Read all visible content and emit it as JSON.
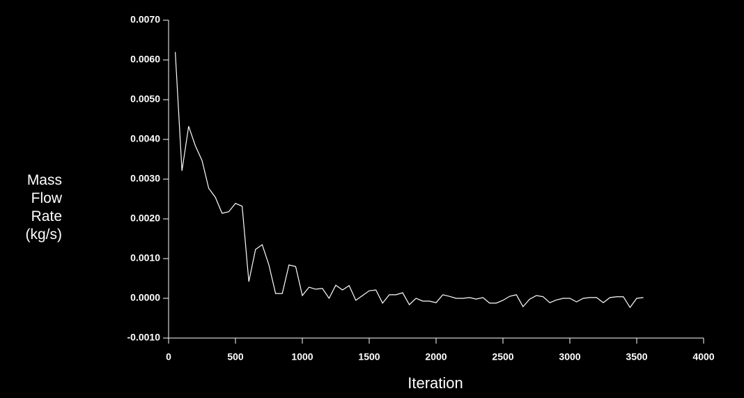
{
  "chart_data": {
    "type": "line",
    "xlabel": "Iteration",
    "ylabel": "Mass\nFlow\nRate\n(kg/s)",
    "x": [
      50,
      100,
      150,
      200,
      250,
      300,
      350,
      400,
      450,
      500,
      550,
      600,
      650,
      700,
      750,
      800,
      850,
      900,
      950,
      1000,
      1050,
      1100,
      1150,
      1200,
      1250,
      1300,
      1350,
      1400,
      1450,
      1500,
      1550,
      1600,
      1650,
      1700,
      1750,
      1800,
      1850,
      1900,
      1950,
      2000,
      2050,
      2100,
      2150,
      2200,
      2250,
      2300,
      2350,
      2400,
      2450,
      2500,
      2550,
      2600,
      2650,
      2700,
      2750,
      2800,
      2850,
      2900,
      2950,
      3000,
      3050,
      3100,
      3150,
      3200,
      3250,
      3300,
      3350,
      3400,
      3450,
      3500,
      3550
    ],
    "series": [
      {
        "color": "#ffffff",
        "values": [
          0.0062,
          0.00321,
          0.00433,
          0.00384,
          0.00347,
          0.00277,
          0.00254,
          0.00214,
          0.00218,
          0.00239,
          0.00232,
          0.00042,
          0.00123,
          0.00135,
          0.00084,
          0.00012,
          0.00012,
          0.00084,
          0.0008,
          7e-05,
          0.00028,
          0.00023,
          0.00025,
          0.0,
          0.00033,
          0.00021,
          0.00032,
          -5e-05,
          7e-05,
          0.00019,
          0.00021,
          -0.00012,
          9e-05,
          9e-05,
          0.00014,
          -0.00016,
          0.0,
          -7e-05,
          -7e-05,
          -0.00011,
          9e-05,
          5e-05,
          0.0,
          0.0,
          2e-05,
          -2e-05,
          2e-05,
          -0.00012,
          -0.00012,
          -5e-05,
          5e-05,
          9e-05,
          -0.00021,
          -2e-05,
          7e-05,
          4e-05,
          -0.00011,
          -4e-05,
          0.0,
          0.0,
          -9e-05,
          0.0,
          2e-05,
          2e-05,
          -0.00011,
          2e-05,
          4e-05,
          4e-05,
          -0.00023,
          0.0,
          2e-05
        ]
      }
    ],
    "xlim": [
      0,
      4000
    ],
    "xticks": [
      0,
      500,
      1000,
      1500,
      2000,
      2500,
      3000,
      3500,
      4000
    ],
    "ylim": [
      -0.001,
      0.007
    ],
    "yticks": [
      {
        "value": -0.001,
        "label": "-0.0010"
      },
      {
        "value": 0,
        "label": "0.0000"
      },
      {
        "value": 0.001,
        "label": "0.0010"
      },
      {
        "value": 0.002,
        "label": "0.0020"
      },
      {
        "value": 0.003,
        "label": "0.0030"
      },
      {
        "value": 0.004,
        "label": "0.0040"
      },
      {
        "value": 0.005,
        "label": "0.0050"
      },
      {
        "value": 0.006,
        "label": "0.0060"
      },
      {
        "value": 0.007,
        "label": "0.0070"
      }
    ],
    "grid": false
  }
}
